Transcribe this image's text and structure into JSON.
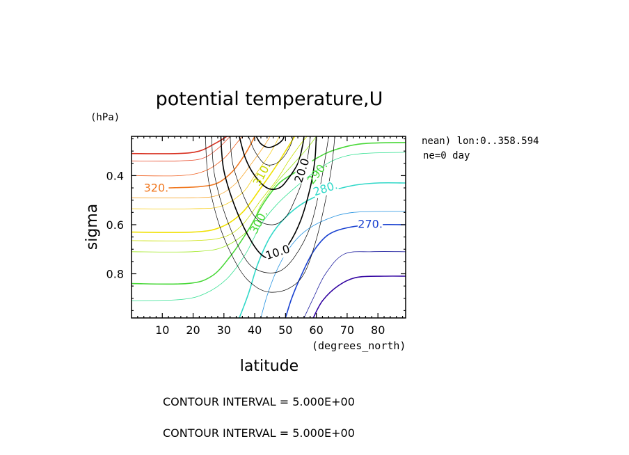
{
  "chart_data": {
    "type": "contour",
    "title": "potential temperature,U",
    "xlabel": "latitude",
    "xunit": "(degrees_north)",
    "ylabel": "sigma",
    "yunit": "(hPa)",
    "xlim": [
      0,
      89
    ],
    "ylim": [
      0.24,
      0.98
    ],
    "y_inverted": true,
    "x_ticks": [
      10,
      20,
      30,
      40,
      50,
      60,
      70,
      80
    ],
    "x_tick_labels": [
      "10",
      "20",
      "30",
      "40",
      "50",
      "60",
      "70",
      "80"
    ],
    "y_ticks": [
      0.4,
      0.6,
      0.8
    ],
    "y_tick_labels": [
      "0.4",
      "0.6",
      "0.8"
    ],
    "info_lines": [
      "nean) lon:0..358.594",
      "ne=0 day"
    ],
    "contour_interval_lines": [
      "CONTOUR INTERVAL = 5.000E+00",
      "CONTOUR INTERVAL = 5.000E+00"
    ],
    "theta_contours": [
      {
        "value": 335,
        "color": "#d83020",
        "width": 1.6,
        "points": [
          [
            0,
            0.31
          ],
          [
            15,
            0.31
          ],
          [
            22,
            0.3
          ],
          [
            27,
            0.27
          ],
          [
            31,
            0.24
          ]
        ]
      },
      {
        "value": 330,
        "color": "#e84828",
        "width": 0.8,
        "points": [
          [
            0,
            0.34
          ],
          [
            15,
            0.34
          ],
          [
            23,
            0.33
          ],
          [
            28,
            0.29
          ],
          [
            32,
            0.24
          ]
        ]
      },
      {
        "value": 325,
        "color": "#f06020",
        "width": 0.8,
        "points": [
          [
            0,
            0.4
          ],
          [
            16,
            0.4
          ],
          [
            24,
            0.38
          ],
          [
            30,
            0.33
          ],
          [
            34,
            0.27
          ],
          [
            36,
            0.24
          ]
        ]
      },
      {
        "value": 320,
        "color": "#f07820",
        "width": 1.6,
        "label": "320.",
        "points": [
          [
            12,
            0.45
          ],
          [
            22,
            0.445
          ],
          [
            28,
            0.43
          ],
          [
            33,
            0.38
          ],
          [
            37,
            0.31
          ],
          [
            40,
            0.24
          ]
        ]
      },
      {
        "value": 315,
        "color": "#f8a830",
        "width": 0.8,
        "points": [
          [
            0,
            0.49
          ],
          [
            20,
            0.49
          ],
          [
            28,
            0.48
          ],
          [
            34,
            0.43
          ],
          [
            39,
            0.35
          ],
          [
            43,
            0.28
          ],
          [
            45,
            0.24
          ]
        ]
      },
      {
        "value": 310,
        "color": "#f8d020",
        "width": 0.8,
        "points": [
          [
            0,
            0.535
          ],
          [
            20,
            0.535
          ],
          [
            29,
            0.525
          ],
          [
            36,
            0.47
          ],
          [
            40,
            0.4
          ],
          [
            45,
            0.31
          ],
          [
            48,
            0.24
          ]
        ]
      },
      {
        "value": 305,
        "color": "#f0e000",
        "width": 1.6,
        "points": [
          [
            0,
            0.63
          ],
          [
            20,
            0.63
          ],
          [
            29,
            0.61
          ],
          [
            36,
            0.55
          ],
          [
            42,
            0.45
          ],
          [
            47,
            0.36
          ],
          [
            50,
            0.3
          ],
          [
            53,
            0.24
          ]
        ]
      },
      {
        "value": 300,
        "color": "#c8e000",
        "width": 0.8,
        "points": [
          [
            0,
            0.665
          ],
          [
            20,
            0.665
          ],
          [
            30,
            0.65
          ],
          [
            36,
            0.6
          ],
          [
            42,
            0.5
          ],
          [
            47,
            0.42
          ],
          [
            51,
            0.34
          ],
          [
            55,
            0.27
          ],
          [
            57,
            0.24
          ]
        ]
      },
      {
        "value": 295,
        "color": "#a0e820",
        "width": 0.8,
        "points": [
          [
            0,
            0.71
          ],
          [
            20,
            0.71
          ],
          [
            30,
            0.69
          ],
          [
            38,
            0.62
          ],
          [
            42,
            0.52
          ],
          [
            47,
            0.43
          ],
          [
            52,
            0.36
          ],
          [
            57,
            0.29
          ],
          [
            60,
            0.24
          ]
        ]
      },
      {
        "value": 290,
        "color": "#48d838",
        "width": 1.6,
        "points": [
          [
            0,
            0.84
          ],
          [
            18,
            0.84
          ],
          [
            26,
            0.81
          ],
          [
            32,
            0.73
          ],
          [
            38,
            0.62
          ],
          [
            43,
            0.51
          ],
          [
            48,
            0.43
          ],
          [
            54,
            0.38
          ],
          [
            60,
            0.33
          ],
          [
            66,
            0.295
          ],
          [
            75,
            0.27
          ],
          [
            89,
            0.265
          ]
        ]
      },
      {
        "value": 285,
        "color": "#30e090",
        "width": 0.8,
        "points": [
          [
            0,
            0.91
          ],
          [
            16,
            0.905
          ],
          [
            24,
            0.88
          ],
          [
            31,
            0.82
          ],
          [
            37,
            0.72
          ],
          [
            42,
            0.6
          ],
          [
            47,
            0.52
          ],
          [
            53,
            0.45
          ],
          [
            60,
            0.38
          ],
          [
            67,
            0.33
          ],
          [
            75,
            0.31
          ],
          [
            89,
            0.305
          ]
        ]
      },
      {
        "value": 280,
        "color": "#30d8c8",
        "width": 1.6,
        "label": "280.",
        "points": [
          [
            35,
            0.98
          ],
          [
            38,
            0.88
          ],
          [
            41,
            0.76
          ],
          [
            45,
            0.65
          ],
          [
            50,
            0.57
          ],
          [
            56,
            0.51
          ],
          [
            63,
            0.47
          ],
          [
            72,
            0.44
          ],
          [
            80,
            0.43
          ],
          [
            89,
            0.43
          ]
        ]
      },
      {
        "value": 275,
        "color": "#2090e0",
        "width": 0.8,
        "points": [
          [
            42,
            0.98
          ],
          [
            44,
            0.89
          ],
          [
            47,
            0.79
          ],
          [
            51,
            0.7
          ],
          [
            56,
            0.63
          ],
          [
            63,
            0.58
          ],
          [
            72,
            0.55
          ],
          [
            89,
            0.545
          ]
        ]
      },
      {
        "value": 270,
        "color": "#1840d0",
        "width": 1.6,
        "label": "270.",
        "points": [
          [
            50,
            0.98
          ],
          [
            52,
            0.9
          ],
          [
            55,
            0.81
          ],
          [
            59,
            0.71
          ],
          [
            64,
            0.64
          ],
          [
            71,
            0.61
          ],
          [
            80,
            0.6
          ],
          [
            89,
            0.6
          ]
        ]
      },
      {
        "value": 265,
        "color": "#2020a0",
        "width": 0.8,
        "points": [
          [
            56,
            0.98
          ],
          [
            59,
            0.9
          ],
          [
            63,
            0.8
          ],
          [
            69,
            0.72
          ],
          [
            78,
            0.71
          ],
          [
            89,
            0.71
          ]
        ]
      },
      {
        "value": 260,
        "color": "#3000a0",
        "width": 1.6,
        "points": [
          [
            59,
            0.98
          ],
          [
            62,
            0.91
          ],
          [
            67,
            0.85
          ],
          [
            73,
            0.815
          ],
          [
            82,
            0.81
          ],
          [
            89,
            0.81
          ]
        ]
      }
    ],
    "theta_label_annotations": [
      {
        "text": "310.",
        "color": "#c8d800",
        "x": 42.5,
        "y": 0.395,
        "rotate": -62
      },
      {
        "text": "300.",
        "color": "#48d838",
        "x": 41.5,
        "y": 0.59,
        "rotate": -62
      },
      {
        "text": "290.",
        "color": "#48d838",
        "x": 60.5,
        "y": 0.39,
        "rotate": -52
      }
    ],
    "u_contours": [
      {
        "value": 0,
        "color": "#000000",
        "width": 0.7,
        "points": [
          [
            24,
            0.24
          ],
          [
            25,
            0.42
          ],
          [
            29,
            0.62
          ],
          [
            35,
            0.78
          ],
          [
            40,
            0.85
          ],
          [
            45,
            0.875
          ],
          [
            51,
            0.86
          ],
          [
            56,
            0.8
          ],
          [
            60,
            0.66
          ],
          [
            63,
            0.5
          ],
          [
            65,
            0.36
          ],
          [
            66,
            0.24
          ]
        ]
      },
      {
        "value": 5,
        "color": "#000000",
        "width": 0.7,
        "points": [
          [
            26,
            0.24
          ],
          [
            27,
            0.4
          ],
          [
            31,
            0.58
          ],
          [
            37,
            0.74
          ],
          [
            42,
            0.79
          ],
          [
            48,
            0.79
          ],
          [
            53,
            0.73
          ],
          [
            58,
            0.61
          ],
          [
            61,
            0.46
          ],
          [
            63,
            0.32
          ],
          [
            64,
            0.24
          ]
        ]
      },
      {
        "value": 10,
        "color": "#000000",
        "width": 1.6,
        "label": "10.0",
        "points": [
          [
            29,
            0.24
          ],
          [
            30,
            0.38
          ],
          [
            34,
            0.54
          ],
          [
            39,
            0.67
          ],
          [
            43,
            0.73
          ],
          [
            47,
            0.73
          ],
          [
            51,
            0.68
          ],
          [
            55,
            0.58
          ],
          [
            58,
            0.45
          ],
          [
            59.5,
            0.34
          ],
          [
            60,
            0.24
          ]
        ]
      },
      {
        "value": 15,
        "color": "#000000",
        "width": 0.7,
        "points": [
          [
            32,
            0.24
          ],
          [
            33,
            0.36
          ],
          [
            37,
            0.5
          ],
          [
            41,
            0.58
          ],
          [
            46,
            0.6
          ],
          [
            50,
            0.57
          ],
          [
            53,
            0.5
          ],
          [
            56,
            0.4
          ],
          [
            57.5,
            0.3
          ],
          [
            58,
            0.24
          ]
        ]
      },
      {
        "value": 20,
        "color": "#000000",
        "width": 1.6,
        "label": "20.0",
        "points": [
          [
            35,
            0.24
          ],
          [
            37,
            0.33
          ],
          [
            40,
            0.4
          ],
          [
            44,
            0.45
          ],
          [
            48,
            0.45
          ],
          [
            51,
            0.41
          ],
          [
            54,
            0.35
          ],
          [
            55.5,
            0.28
          ],
          [
            56,
            0.24
          ]
        ]
      },
      {
        "value": 25,
        "color": "#000000",
        "width": 0.7,
        "points": [
          [
            38,
            0.24
          ],
          [
            40,
            0.3
          ],
          [
            43,
            0.35
          ],
          [
            46,
            0.355
          ],
          [
            49,
            0.33
          ],
          [
            51.5,
            0.28
          ],
          [
            52.5,
            0.24
          ]
        ]
      },
      {
        "value": 30,
        "color": "#000000",
        "width": 1.6,
        "points": [
          [
            40.5,
            0.24
          ],
          [
            42,
            0.27
          ],
          [
            44.5,
            0.285
          ],
          [
            47,
            0.275
          ],
          [
            49,
            0.255
          ],
          [
            49.5,
            0.24
          ]
        ]
      }
    ]
  }
}
